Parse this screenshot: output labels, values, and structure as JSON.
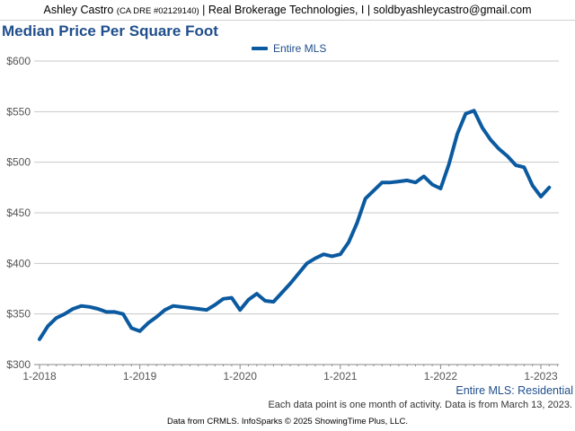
{
  "header": {
    "agent_name": "Ashley Castro",
    "license": "(CA DRE #02129140)",
    "company_email": "| Real Brokerage Technologies, I | soldbyashleycastro@gmail.com"
  },
  "title": "Median Price Per Square Foot",
  "legend": {
    "label": "Entire MLS",
    "color": "#0b5aa0"
  },
  "segment_label": "Entire MLS: Residential",
  "note": "Each data point is one month of activity. Data is from March 13, 2023.",
  "source": "Data from CRMLS. InfoSparks © 2025 ShowingTime Plus, LLC.",
  "chart_data": {
    "type": "line",
    "title": "Median Price Per Square Foot",
    "xlabel": "",
    "ylabel": "",
    "ylim": [
      300,
      600
    ],
    "yticks": [
      "$300",
      "$350",
      "$400",
      "$450",
      "$500",
      "$550",
      "$600"
    ],
    "xticks": [
      "1-2018",
      "1-2019",
      "1-2020",
      "1-2021",
      "1-2022",
      "1-2023"
    ],
    "x_start": "2018-01",
    "grid": true,
    "legend_position": "top",
    "series": [
      {
        "name": "Entire MLS",
        "color": "#0b5aa0",
        "values": [
          325,
          338,
          346,
          350,
          355,
          358,
          357,
          355,
          352,
          352,
          350,
          336,
          333,
          341,
          347,
          354,
          358,
          357,
          356,
          355,
          354,
          359,
          365,
          366,
          354,
          364,
          370,
          363,
          362,
          371,
          380,
          390,
          400,
          405,
          409,
          407,
          409,
          421,
          440,
          464,
          472,
          480,
          480,
          481,
          482,
          480,
          486,
          478,
          474,
          498,
          528,
          548,
          551,
          534,
          522,
          513,
          506,
          497,
          495,
          477,
          466,
          475
        ]
      }
    ]
  }
}
